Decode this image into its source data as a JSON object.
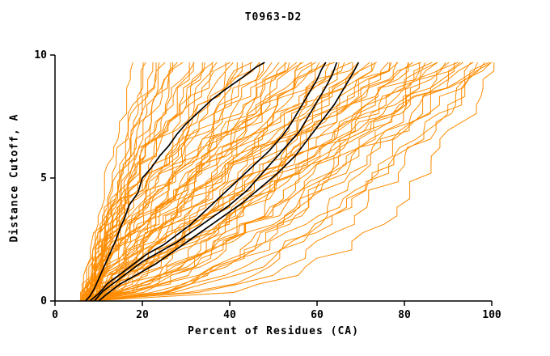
{
  "chart_data": {
    "type": "line",
    "title": "T0963-D2",
    "xlabel": "Percent of Residues (CA)",
    "ylabel": "Distance Cutoff, A",
    "xlim": [
      0,
      100
    ],
    "ylim": [
      0,
      10
    ],
    "x_ticks": [
      0,
      20,
      40,
      60,
      80,
      100
    ],
    "y_ticks": [
      0,
      5,
      10
    ],
    "y_max_data": 9.7,
    "grid": false,
    "legend": "none",
    "colors": {
      "model_lines": "#ff8c00",
      "highlight_lines": "#000000",
      "axis": "#000000",
      "background": "#ffffff"
    },
    "line_widths": {
      "model": 1,
      "highlight": 1.7
    },
    "orange_series": [
      [
        6,
        18,
        1.1,
        1.2
      ],
      [
        6.5,
        20,
        0.9,
        1.5
      ],
      [
        7,
        21,
        1.3,
        1.4
      ],
      [
        6,
        22,
        1.0,
        1.6
      ],
      [
        7.5,
        23,
        1.2,
        1.5
      ],
      [
        6,
        24,
        0.8,
        1.6
      ],
      [
        7,
        25,
        1.4,
        1.5
      ],
      [
        8,
        26,
        1.0,
        1.8
      ],
      [
        6.5,
        27,
        1.2,
        1.6
      ],
      [
        7,
        28,
        0.9,
        1.8
      ],
      [
        6,
        29,
        1.5,
        1.6
      ],
      [
        7.5,
        30,
        1.1,
        1.8
      ],
      [
        8,
        31,
        1.3,
        1.8
      ],
      [
        6.5,
        32,
        1.0,
        2.0
      ],
      [
        7,
        33,
        0.8,
        2.0
      ],
      [
        6,
        34,
        1.2,
        2.0
      ],
      [
        8,
        35,
        0.6,
        2.0
      ],
      [
        7,
        36,
        1.5,
        2.0
      ],
      [
        6.5,
        37,
        1.0,
        2.0
      ],
      [
        7.5,
        38,
        0.7,
        2.2
      ],
      [
        6,
        40,
        1.8,
        2.2
      ],
      [
        8,
        41,
        1.1,
        2.2
      ],
      [
        7,
        42,
        0.6,
        2.2
      ],
      [
        6.5,
        43,
        1.4,
        2.2
      ],
      [
        7,
        44,
        0.9,
        2.4
      ],
      [
        8,
        45,
        2.0,
        2.2
      ],
      [
        6,
        46,
        0.7,
        2.4
      ],
      [
        7.5,
        47,
        1.2,
        2.4
      ],
      [
        7,
        48,
        0.5,
        2.4
      ],
      [
        6,
        50,
        1.6,
        2.4
      ],
      [
        8,
        51,
        1.0,
        2.4
      ],
      [
        7,
        52,
        0.65,
        2.6
      ],
      [
        6.5,
        53,
        1.3,
        2.4
      ],
      [
        7,
        54,
        0.85,
        2.6
      ],
      [
        8,
        55,
        1.9,
        2.4
      ],
      [
        6,
        56,
        0.55,
        2.6
      ],
      [
        7,
        57,
        1.15,
        2.6
      ],
      [
        7.5,
        58,
        0.75,
        2.6
      ],
      [
        6.5,
        59,
        1.45,
        2.6
      ],
      [
        7,
        60,
        0.95,
        2.6
      ],
      [
        8,
        61,
        0.5,
        2.8
      ],
      [
        6,
        62,
        1.25,
        2.8
      ],
      [
        7,
        63,
        0.7,
        2.8
      ],
      [
        7.5,
        64,
        1.6,
        2.6
      ],
      [
        6.5,
        65,
        0.45,
        2.8
      ],
      [
        7,
        66,
        1.05,
        2.8
      ],
      [
        8,
        67,
        0.6,
        2.8
      ],
      [
        6,
        68,
        1.35,
        2.8
      ],
      [
        7,
        69,
        0.8,
        2.8
      ],
      [
        7.5,
        70,
        2.1,
        2.6
      ],
      [
        6.5,
        71,
        0.5,
        3.0
      ],
      [
        7,
        72,
        1.1,
        2.8
      ],
      [
        8,
        73,
        0.65,
        3.0
      ],
      [
        6,
        74,
        1.5,
        2.8
      ],
      [
        7,
        75,
        0.4,
        3.0
      ],
      [
        7.5,
        76,
        0.9,
        3.0
      ],
      [
        6.5,
        77,
        1.2,
        3.0
      ],
      [
        7,
        78,
        0.55,
        3.0
      ],
      [
        8,
        79,
        1.7,
        2.8
      ],
      [
        6,
        80,
        0.75,
        3.0
      ],
      [
        7,
        81,
        0.45,
        3.0
      ],
      [
        7.5,
        82,
        1.05,
        3.0
      ],
      [
        6.5,
        83,
        0.6,
        3.0
      ],
      [
        7,
        84,
        1.4,
        3.0
      ],
      [
        8,
        85,
        0.35,
        3.0
      ],
      [
        6,
        86,
        0.85,
        3.0
      ],
      [
        7,
        87,
        0.5,
        3.0
      ],
      [
        7.5,
        88,
        1.15,
        3.0
      ],
      [
        6.5,
        89,
        0.65,
        3.0
      ],
      [
        7,
        90,
        1.6,
        2.8
      ],
      [
        8,
        91,
        0.4,
        3.0
      ],
      [
        6,
        92,
        0.9,
        3.0
      ],
      [
        7,
        93,
        0.55,
        3.0
      ],
      [
        7.5,
        94,
        1.25,
        3.0
      ],
      [
        6.5,
        95,
        0.35,
        3.0
      ],
      [
        7,
        96,
        0.7,
        3.0
      ],
      [
        8,
        97,
        1.0,
        3.0
      ],
      [
        6,
        98,
        0.45,
        3.0
      ],
      [
        7,
        99,
        0.8,
        3.0
      ],
      [
        7.5,
        100,
        0.3,
        3.0
      ],
      [
        6.5,
        100,
        1.2,
        3.0
      ],
      [
        8,
        100,
        0.55,
        3.0
      ]
    ],
    "black_series": [
      [
        [
          7,
          0
        ],
        [
          8,
          0.2
        ],
        [
          9,
          0.5
        ],
        [
          10,
          0.9
        ],
        [
          11,
          1.3
        ],
        [
          12,
          1.7
        ],
        [
          13,
          2.1
        ],
        [
          14,
          2.5
        ],
        [
          15,
          3.0
        ],
        [
          16,
          3.4
        ],
        [
          17,
          3.9
        ],
        [
          19,
          4.4
        ],
        [
          20,
          5.0
        ],
        [
          22,
          5.4
        ],
        [
          24,
          5.9
        ],
        [
          26,
          6.3
        ],
        [
          28,
          6.8
        ],
        [
          30,
          7.2
        ],
        [
          33,
          7.7
        ],
        [
          36,
          8.2
        ],
        [
          39,
          8.6
        ],
        [
          43,
          9.1
        ],
        [
          46,
          9.5
        ],
        [
          48,
          9.7
        ]
      ],
      [
        [
          8,
          0
        ],
        [
          10,
          0.3
        ],
        [
          12,
          0.7
        ],
        [
          15,
          1.1
        ],
        [
          18,
          1.5
        ],
        [
          21,
          1.9
        ],
        [
          25,
          2.3
        ],
        [
          28,
          2.7
        ],
        [
          31,
          3.1
        ],
        [
          34,
          3.6
        ],
        [
          37,
          4.1
        ],
        [
          40,
          4.6
        ],
        [
          43,
          5.1
        ],
        [
          46,
          5.6
        ],
        [
          49,
          6.1
        ],
        [
          52,
          6.7
        ],
        [
          54,
          7.2
        ],
        [
          56,
          7.8
        ],
        [
          58,
          8.4
        ],
        [
          60,
          9.0
        ],
        [
          61,
          9.4
        ],
        [
          62,
          9.7
        ]
      ],
      [
        [
          9,
          0
        ],
        [
          11,
          0.4
        ],
        [
          14,
          0.8
        ],
        [
          17,
          1.2
        ],
        [
          20,
          1.6
        ],
        [
          24,
          2.0
        ],
        [
          28,
          2.4
        ],
        [
          32,
          2.9
        ],
        [
          36,
          3.4
        ],
        [
          40,
          3.9
        ],
        [
          44,
          4.5
        ],
        [
          47,
          5.1
        ],
        [
          50,
          5.7
        ],
        [
          53,
          6.3
        ],
        [
          56,
          6.9
        ],
        [
          58,
          7.5
        ],
        [
          60,
          8.1
        ],
        [
          62,
          8.7
        ],
        [
          63.5,
          9.2
        ],
        [
          64.5,
          9.7
        ]
      ],
      [
        [
          10,
          0
        ],
        [
          12,
          0.3
        ],
        [
          15,
          0.7
        ],
        [
          19,
          1.1
        ],
        [
          23,
          1.5
        ],
        [
          27,
          2.0
        ],
        [
          31,
          2.5
        ],
        [
          35,
          3.0
        ],
        [
          39,
          3.5
        ],
        [
          43,
          4.0
        ],
        [
          47,
          4.6
        ],
        [
          51,
          5.2
        ],
        [
          55,
          5.9
        ],
        [
          58,
          6.6
        ],
        [
          61,
          7.3
        ],
        [
          64,
          8.0
        ],
        [
          66,
          8.6
        ],
        [
          68,
          9.2
        ],
        [
          69.5,
          9.7
        ]
      ]
    ]
  }
}
